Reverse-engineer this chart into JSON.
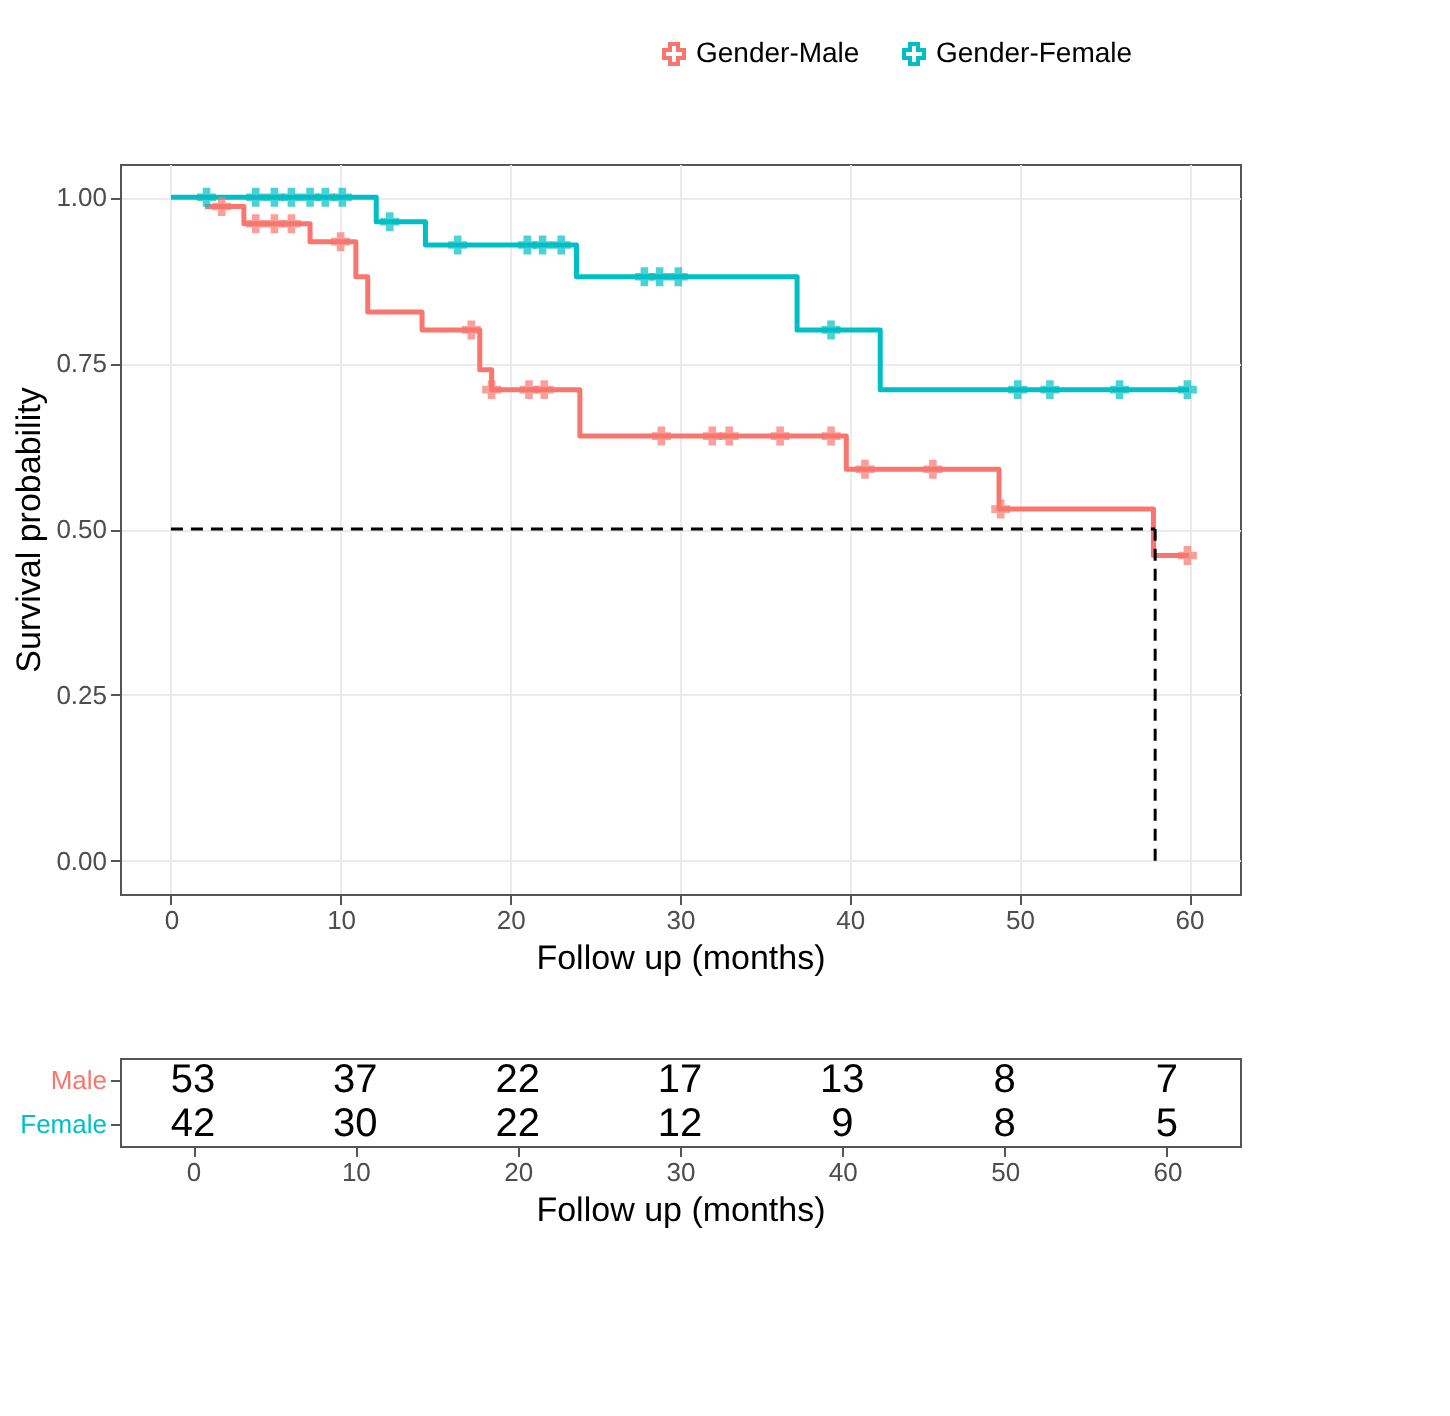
{
  "chart_data": [
    {
      "type": "step",
      "xlabel": "Follow up (months)",
      "ylabel": "Survival probability",
      "xlim": [
        -3,
        63
      ],
      "xticks": [
        0,
        10,
        20,
        30,
        40,
        50,
        60
      ],
      "ylim": [
        -0.05,
        1.05
      ],
      "yticks": [
        {
          "value": 0,
          "label": "0.00"
        },
        {
          "value": 0.25,
          "label": "0.25"
        },
        {
          "value": 0.5,
          "label": "0.50"
        },
        {
          "value": 0.75,
          "label": "0.75"
        },
        {
          "value": 1,
          "label": "1.00"
        }
      ],
      "grid": true,
      "legend": "top right",
      "series": [
        {
          "name": "Gender-Male",
          "color": "#f8766d",
          "x": [
            2,
            4.3,
            8.2,
            10.9,
            11.6,
            14.8,
            18.2,
            18.9,
            24.1,
            39.8,
            48.8,
            57.9,
            60
          ],
          "values": [
            0.986,
            0.96,
            0.933,
            0.88,
            0.827,
            0.8,
            0.74,
            0.71,
            0.64,
            0.59,
            0.53,
            0.46,
            0.46
          ]
        },
        {
          "name": "Gender-Female",
          "color": "#00bfc4",
          "x": [
            0,
            12.1,
            15,
            23.9,
            36.9,
            41.8,
            60
          ],
          "values": [
            1,
            0.963,
            0.928,
            0.88,
            0.8,
            0.71,
            0.71
          ]
        },
        {
          "type": "scatter",
          "marker": "cross",
          "color": "#f8766d",
          "x": [
            3,
            5,
            6.1,
            7.1,
            10,
            17.7,
            18.9,
            21.1,
            22,
            28.9,
            31.9,
            32.9,
            35.9,
            38.9,
            40.9,
            44.9,
            48.9,
            59.9
          ],
          "values": [
            0.986,
            0.96,
            0.96,
            0.96,
            0.933,
            0.8,
            0.71,
            0.71,
            0.71,
            0.64,
            0.64,
            0.64,
            0.64,
            0.64,
            0.59,
            0.59,
            0.53,
            0.46
          ]
        },
        {
          "type": "scatter",
          "marker": "cross",
          "color": "#00bfc4",
          "x": [
            2.1,
            5,
            6.1,
            7.1,
            8.2,
            9.1,
            10.1,
            12.9,
            16.9,
            21,
            21.9,
            23,
            27.9,
            28.8,
            29.9,
            38.9,
            49.9,
            51.8,
            55.9,
            59.9
          ],
          "values": [
            1,
            1,
            1,
            1,
            1,
            1,
            1,
            0.963,
            0.928,
            0.928,
            0.928,
            0.928,
            0.88,
            0.88,
            0.88,
            0.8,
            0.71,
            0.71,
            0.71,
            0.71
          ]
        }
      ],
      "ref_lines": [
        {
          "axis": "y",
          "value": 0.5,
          "color": "#000000",
          "line_style": "dashed"
        },
        {
          "axis": "x",
          "value": 58,
          "color": "#000000",
          "line_style": "dashed"
        }
      ]
    },
    {
      "type": "heatmap",
      "xlabel": "Follow up (months)",
      "categories": [
        "0",
        "10",
        "20",
        "30",
        "40",
        "50",
        "60"
      ],
      "y_categories": [
        "Male",
        "Female"
      ],
      "data_labels": true,
      "cells": [
        [
          53,
          37,
          22,
          17,
          13,
          8,
          7
        ],
        [
          42,
          30,
          22,
          12,
          9,
          8,
          5
        ]
      ]
    }
  ]
}
